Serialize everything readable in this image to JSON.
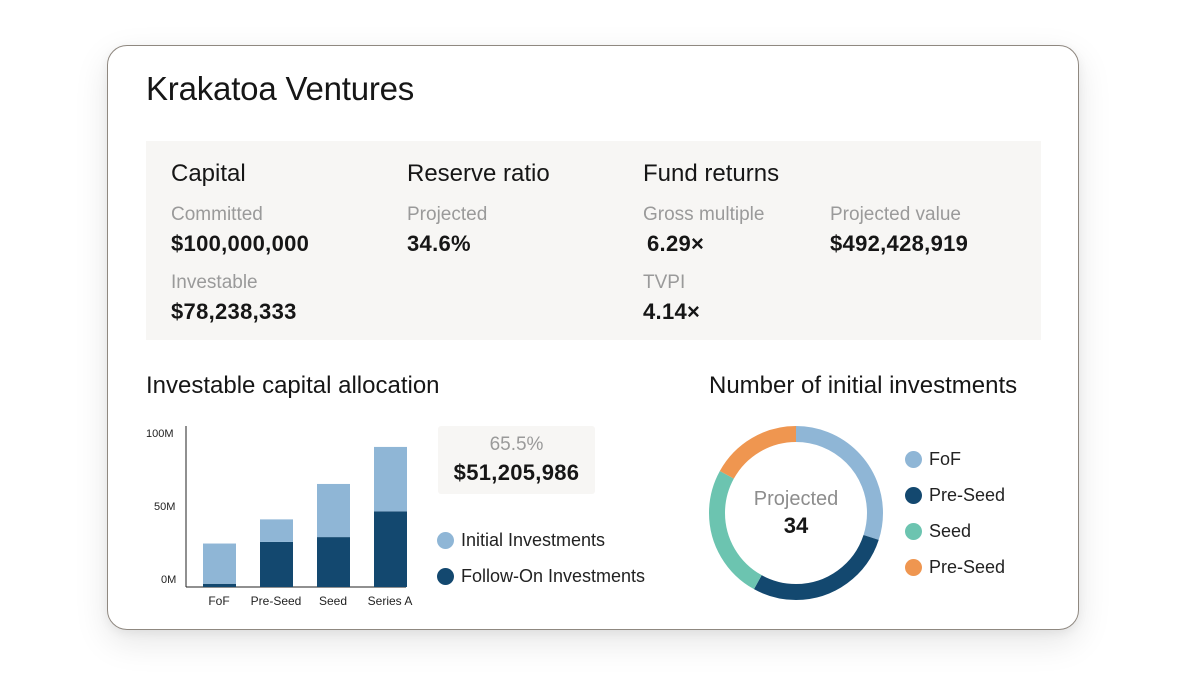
{
  "header": {
    "title": "Krakatoa Ventures"
  },
  "capital": {
    "heading": "Capital",
    "committed_label": "Committed",
    "committed_value": "$100,000,000",
    "investable_label": "Investable",
    "investable_value": "$78,238,333"
  },
  "reserve": {
    "heading": "Reserve ratio",
    "projected_label": "Projected",
    "projected_value": "34.6%"
  },
  "returns": {
    "heading": "Fund returns",
    "gross_label": "Gross multiple",
    "gross_value": "6.29×",
    "projected_value_label": "Projected value",
    "projected_value_value": "$492,428,919",
    "tvpi_label": "TVPI",
    "tvpi_value": "4.14×"
  },
  "allocation": {
    "title": "Investable capital allocation",
    "tooltip_pct": "65.5%",
    "tooltip_amount": "$51,205,986",
    "legend": [
      {
        "label": "Initial Investments",
        "color": "#8fb6d6"
      },
      {
        "label": "Follow-On Investments",
        "color": "#13486f"
      }
    ]
  },
  "initial": {
    "title": "Number of initial investments",
    "center_label": "Projected",
    "center_value": "34",
    "legend": [
      {
        "label": "FoF",
        "color": "#8fb6d6"
      },
      {
        "label": "Pre-Seed",
        "color": "#13486f"
      },
      {
        "label": "Seed",
        "color": "#6cc4b0"
      },
      {
        "label": "Pre-Seed",
        "color": "#ef9650"
      }
    ]
  },
  "chart_data": [
    {
      "type": "bar",
      "stacked": true,
      "categories": [
        "FoF",
        "Pre-Seed",
        "Seed",
        "Series A"
      ],
      "yticks": [
        "100M",
        "50M",
        "0M"
      ],
      "ylim": [
        0,
        100
      ],
      "series": [
        {
          "name": "Follow-On Investments",
          "color": "#13486f",
          "values": [
            2,
            28,
            31,
            47
          ]
        },
        {
          "name": "Initial Investments",
          "color": "#8fb6d6",
          "values": [
            25,
            14,
            33,
            40
          ]
        }
      ]
    },
    {
      "type": "pie",
      "donut": true,
      "categories": [
        "FoF",
        "Pre-Seed",
        "Seed",
        "Pre-Seed"
      ],
      "values": [
        0.3,
        0.28,
        0.25,
        0.17
      ],
      "colors": [
        "#8fb6d6",
        "#13486f",
        "#6cc4b0",
        "#ef9650"
      ]
    }
  ]
}
